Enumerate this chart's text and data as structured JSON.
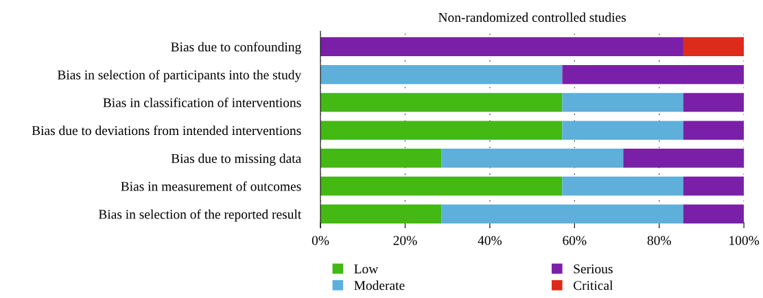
{
  "chart_data": {
    "type": "bar",
    "orientation": "horizontal",
    "stacked": true,
    "title": "Non-randomized controlled studies",
    "categories": [
      "Bias due to confounding",
      "Bias in selection of participants into the study",
      "Bias in classification of interventions",
      "Bias due to deviations from intended interventions",
      "Bias due to missing data",
      "Bias in measurement of outcomes",
      "Bias in selection of the reported result"
    ],
    "series": [
      {
        "name": "Low",
        "color": "#44b913",
        "values": [
          0,
          0,
          57.1,
          57.1,
          28.6,
          57.1,
          28.6
        ]
      },
      {
        "name": "Moderate",
        "color": "#5eafda",
        "values": [
          0,
          57.1,
          28.6,
          28.6,
          42.9,
          28.6,
          57.1
        ]
      },
      {
        "name": "Serious",
        "color": "#7a20a8",
        "values": [
          85.7,
          42.9,
          14.3,
          14.3,
          28.6,
          14.3,
          14.3
        ]
      },
      {
        "name": "Critical",
        "color": "#dc2b1b",
        "values": [
          14.3,
          0,
          0,
          0,
          0,
          0,
          0
        ]
      }
    ],
    "xlim": [
      0,
      100
    ],
    "xticks": [
      {
        "value": 0,
        "label": "0%"
      },
      {
        "value": 20,
        "label": "20%"
      },
      {
        "value": 40,
        "label": "40%"
      },
      {
        "value": 60,
        "label": "60%"
      },
      {
        "value": 80,
        "label": "80%"
      },
      {
        "value": 100,
        "label": "100%"
      }
    ],
    "grid": "x",
    "legend": "bottom"
  }
}
